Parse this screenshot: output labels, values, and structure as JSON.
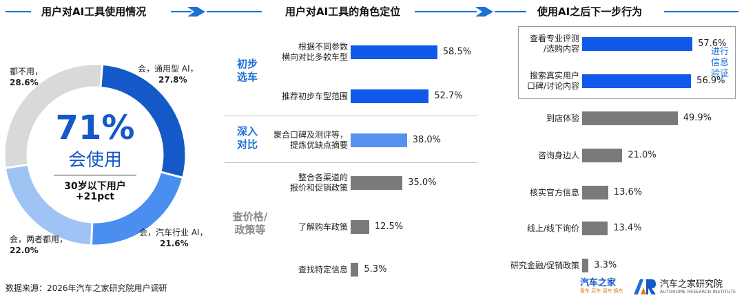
{
  "section_titles": {
    "usage": "用户对AI工具使用情况",
    "role": "用户对AI工具的角色定位",
    "next": "使用AI之后下一步行为"
  },
  "donut": {
    "center_value": "71%",
    "center_label": "会使用",
    "sub_line1": "30岁以下用户",
    "sub_line2": "+21pct",
    "labels": {
      "general": "会，通用型 AI，",
      "general_pct": "27.8%",
      "industry": "会，汽车行业 AI，",
      "industry_pct": "21.6%",
      "both": "会，两者都用，",
      "both_pct": "22.0%",
      "none": "都不用，",
      "none_pct": "28.6%"
    },
    "colors": {
      "general": "#1559c8",
      "industry": "#4a8ff0",
      "both": "#9fc3f5",
      "none": "#d9d9d9"
    }
  },
  "chart_data": [
    {
      "type": "pie",
      "categories": [
        "会，通用型 AI",
        "会，汽车行业 AI",
        "会，两者都用",
        "都不用"
      ],
      "values": [
        27.8,
        21.6,
        22.0,
        28.6
      ]
    },
    {
      "type": "bar",
      "orientation": "horizontal",
      "groups": [
        {
          "name": "初步选车",
          "categories": [
            "根据不同参数横向对比多款车型",
            "推荐初步车型范围"
          ],
          "values": [
            58.5,
            52.7
          ]
        },
        {
          "name": "深入对比",
          "categories": [
            "聚合口碑及测评等，提炼优缺点摘要"
          ],
          "values": [
            38.0
          ]
        },
        {
          "name": "查价格/政策等",
          "categories": [
            "整合各渠道的报价和促销政策",
            "了解购车政策",
            "查找特定信息"
          ],
          "values": [
            35.0,
            12.5,
            5.3
          ]
        }
      ]
    },
    {
      "type": "bar",
      "orientation": "horizontal",
      "categories": [
        "查看专业评测/选购内容",
        "搜索真实用户口碑/讨论内容",
        "到店体验",
        "咨询身边人",
        "核实官方信息",
        "线上/线下询价",
        "研究金融/促销政策"
      ],
      "values": [
        57.6,
        56.9,
        49.9,
        21.0,
        13.6,
        13.4,
        3.3
      ],
      "annotation": "进行信息验证"
    }
  ],
  "role": {
    "groups": {
      "g1_line1": "初步",
      "g1_line2": "选车",
      "g2_line1": "深入",
      "g2_line2": "对比",
      "g3_line1": "查价格/",
      "g3_line2": "政策等"
    },
    "bars": [
      {
        "l1": "根据不同参数",
        "l2": "横向对比多款车型",
        "value": 58.5,
        "text": "58.5%"
      },
      {
        "l1": "推荐初步车型范围",
        "l2": "",
        "value": 52.7,
        "text": "52.7%"
      },
      {
        "l1": "聚合口碑及测评等，",
        "l2": "提炼优缺点摘要",
        "value": 38.0,
        "text": "38.0%"
      },
      {
        "l1": "整合各渠道的",
        "l2": "报价和促销政策",
        "value": 35.0,
        "text": "35.0%"
      },
      {
        "l1": "了解购车政策",
        "l2": "",
        "value": 12.5,
        "text": "12.5%"
      },
      {
        "l1": "查找特定信息",
        "l2": "",
        "value": 5.3,
        "text": "5.3%"
      }
    ]
  },
  "next": {
    "annotation_l1": "进行",
    "annotation_l2": "信息",
    "annotation_l3": "验证",
    "bars": [
      {
        "l1": "查看专业评测",
        "l2": "/选购内容",
        "value": 57.6,
        "text": "57.6%"
      },
      {
        "l1": "搜索真实用户",
        "l2": "口碑/讨论内容",
        "value": 56.9,
        "text": "56.9%"
      },
      {
        "l1": "到店体验",
        "l2": "",
        "value": 49.9,
        "text": "49.9%"
      },
      {
        "l1": "咨询身边人",
        "l2": "",
        "value": 21.0,
        "text": "21.0%"
      },
      {
        "l1": "核实官方信息",
        "l2": "",
        "value": 13.6,
        "text": "13.6%"
      },
      {
        "l1": "线上/线下询价",
        "l2": "",
        "value": 13.4,
        "text": "13.4%"
      },
      {
        "l1": "研究金融/促销政策",
        "l2": "",
        "value": 3.3,
        "text": "3.3%"
      }
    ]
  },
  "footer": {
    "source": "数据来源：2026年汽车之家研究院用户调研",
    "logo1": "汽车之家",
    "logo1_sub": "看车 买车 用车 换车",
    "logo2": "汽车之家研究院",
    "logo2_sub": "AUTOHOME RESEARCH INSTITUTE"
  }
}
